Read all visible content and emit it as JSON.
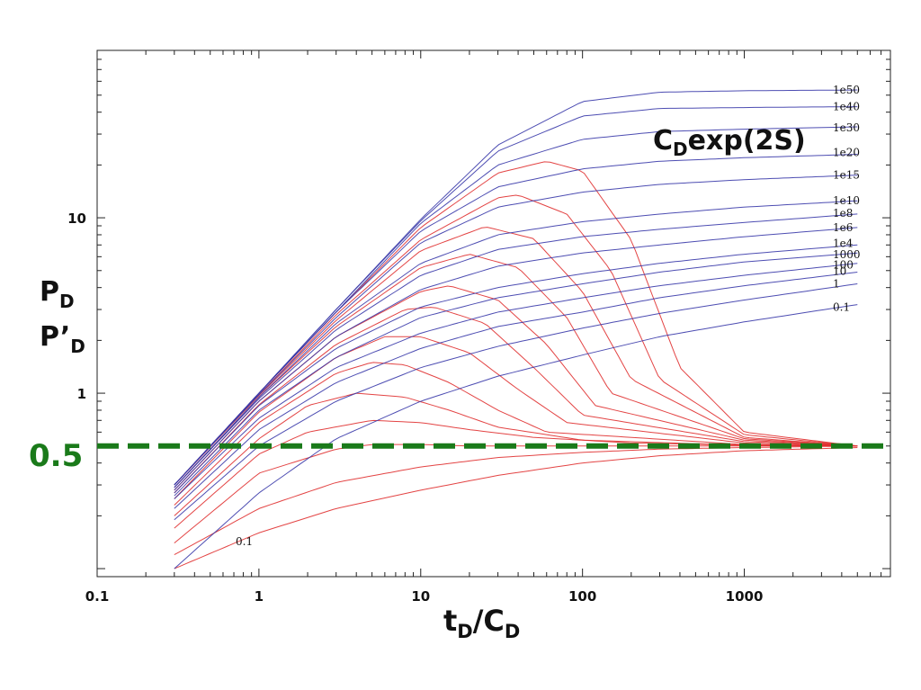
{
  "chart_data": {
    "type": "line",
    "xscale": "log",
    "yscale": "log",
    "xlim": [
      0.1,
      8000
    ],
    "ylim": [
      0.09,
      90
    ],
    "x_ticks": [
      0.1,
      1,
      10,
      100,
      1000
    ],
    "x_tick_labels": [
      "0.1",
      "1",
      "10",
      "100",
      "1000"
    ],
    "y_ticks": [
      1,
      10
    ],
    "y_tick_labels": [
      "1",
      "10"
    ],
    "xlabel": {
      "main": "t",
      "sub1": "D",
      "slash": "/C",
      "sub2": "D"
    },
    "ylabel": {
      "line1_main": "P",
      "line1_sub": "D",
      "line2_main": "P’",
      "line2_sub": "D"
    },
    "annotation": {
      "main": "C",
      "sub": "D",
      "rest": "exp(2S)"
    },
    "reference_line": {
      "value": 0.5,
      "label": "0.5",
      "color": "#1a7a1a",
      "style": "dashed"
    },
    "pressure_color": "#3a3aaa",
    "derivative_color": "#e03030",
    "grid": false,
    "cdexp2s_values": [
      "1e50",
      "1e40",
      "1e30",
      "1e20",
      "1e15",
      "1e10",
      "1e8",
      "1e6",
      "1e4",
      "1000",
      "100",
      "10",
      "1",
      "0.1"
    ],
    "derivative_curve_label": "0.1",
    "t_range": [
      0.3,
      5000
    ],
    "series": [
      {
        "type": "pressure",
        "cdexp2s": "1e50",
        "x": [
          0.3,
          1,
          3,
          10,
          30,
          100,
          300,
          1000,
          5000
        ],
        "values": [
          0.3,
          1.0,
          3.0,
          9.8,
          26,
          46,
          52,
          53,
          53.5
        ]
      },
      {
        "type": "pressure",
        "cdexp2s": "1e40",
        "x": [
          0.3,
          1,
          3,
          10,
          30,
          100,
          300,
          1000,
          5000
        ],
        "values": [
          0.3,
          1.0,
          3.0,
          9.6,
          24,
          38,
          42,
          42.5,
          43
        ]
      },
      {
        "type": "pressure",
        "cdexp2s": "1e30",
        "x": [
          0.3,
          1,
          3,
          10,
          30,
          100,
          300,
          1000,
          5000
        ],
        "values": [
          0.3,
          1.0,
          2.9,
          9.3,
          20,
          28,
          31,
          32,
          33
        ]
      },
      {
        "type": "pressure",
        "cdexp2s": "1e20",
        "x": [
          0.3,
          1,
          3,
          10,
          30,
          100,
          300,
          1000,
          5000
        ],
        "values": [
          0.3,
          1.0,
          2.9,
          8.4,
          15,
          19,
          21,
          22,
          23
        ]
      },
      {
        "type": "pressure",
        "cdexp2s": "1e15",
        "x": [
          0.3,
          1,
          3,
          10,
          30,
          100,
          300,
          1000,
          5000
        ],
        "values": [
          0.3,
          0.98,
          2.7,
          7.2,
          11.5,
          14,
          15.5,
          16.5,
          17.5
        ]
      },
      {
        "type": "pressure",
        "cdexp2s": "1e10",
        "x": [
          0.3,
          1,
          3,
          10,
          30,
          100,
          300,
          1000,
          5000
        ],
        "values": [
          0.29,
          0.95,
          2.5,
          5.5,
          8.0,
          9.5,
          10.5,
          11.5,
          12.5
        ]
      },
      {
        "type": "pressure",
        "cdexp2s": "1e8",
        "x": [
          0.3,
          1,
          3,
          10,
          30,
          100,
          300,
          1000,
          5000
        ],
        "values": [
          0.29,
          0.93,
          2.3,
          4.7,
          6.6,
          7.8,
          8.6,
          9.4,
          10.5
        ]
      },
      {
        "type": "pressure",
        "cdexp2s": "1e6",
        "x": [
          0.3,
          1,
          3,
          10,
          30,
          100,
          300,
          1000,
          5000
        ],
        "values": [
          0.28,
          0.9,
          2.1,
          3.9,
          5.3,
          6.3,
          7.0,
          7.8,
          8.8
        ]
      },
      {
        "type": "pressure",
        "cdexp2s": "1e4",
        "x": [
          0.3,
          1,
          3,
          10,
          30,
          100,
          300,
          1000,
          5000
        ],
        "values": [
          0.27,
          0.85,
          1.8,
          3.1,
          4.0,
          4.8,
          5.5,
          6.2,
          7.0
        ]
      },
      {
        "type": "pressure",
        "cdexp2s": "1000",
        "x": [
          0.3,
          1,
          3,
          10,
          30,
          100,
          300,
          1000,
          5000
        ],
        "values": [
          0.26,
          0.8,
          1.6,
          2.7,
          3.5,
          4.2,
          4.9,
          5.6,
          6.3
        ]
      },
      {
        "type": "pressure",
        "cdexp2s": "100",
        "x": [
          0.3,
          1,
          3,
          10,
          30,
          100,
          300,
          1000,
          5000
        ],
        "values": [
          0.25,
          0.72,
          1.4,
          2.2,
          2.9,
          3.5,
          4.1,
          4.7,
          5.5
        ]
      },
      {
        "type": "pressure",
        "cdexp2s": "10",
        "x": [
          0.3,
          1,
          3,
          10,
          30,
          100,
          300,
          1000,
          5000
        ],
        "values": [
          0.22,
          0.62,
          1.15,
          1.8,
          2.4,
          2.9,
          3.5,
          4.1,
          4.9
        ]
      },
      {
        "type": "pressure",
        "cdexp2s": "1",
        "x": [
          0.3,
          1,
          3,
          10,
          30,
          100,
          300,
          1000,
          5000
        ],
        "values": [
          0.19,
          0.5,
          0.9,
          1.4,
          1.85,
          2.35,
          2.85,
          3.4,
          4.2
        ]
      },
      {
        "type": "pressure",
        "cdexp2s": "0.1",
        "x": [
          0.3,
          1,
          3,
          10,
          30,
          100,
          300,
          1000,
          5000
        ],
        "values": [
          0.1,
          0.27,
          0.55,
          0.9,
          1.25,
          1.65,
          2.1,
          2.55,
          3.2
        ]
      },
      {
        "type": "derivative",
        "cdexp2s": "1e15",
        "x": [
          0.3,
          1,
          3,
          10,
          30,
          60,
          100,
          200,
          400,
          1000,
          5000
        ],
        "values": [
          0.3,
          1.0,
          2.9,
          8.8,
          18,
          21,
          18.5,
          7.5,
          1.4,
          0.6,
          0.5
        ]
      },
      {
        "type": "derivative",
        "cdexp2s": "1e10",
        "x": [
          0.3,
          1,
          3,
          10,
          30,
          40,
          80,
          150,
          300,
          1000,
          5000
        ],
        "values": [
          0.3,
          0.98,
          2.8,
          7.5,
          13,
          13.5,
          10.5,
          5.0,
          1.2,
          0.58,
          0.5
        ]
      },
      {
        "type": "derivative",
        "cdexp2s": "1e8",
        "x": [
          0.3,
          1,
          3,
          10,
          25,
          50,
          100,
          200,
          1000,
          5000
        ],
        "values": [
          0.3,
          0.97,
          2.6,
          6.5,
          8.9,
          7.6,
          3.8,
          1.2,
          0.56,
          0.5
        ]
      },
      {
        "type": "derivative",
        "cdexp2s": "1e6",
        "x": [
          0.3,
          1,
          3,
          10,
          20,
          40,
          80,
          150,
          1000,
          5000
        ],
        "values": [
          0.29,
          0.95,
          2.4,
          5.2,
          6.2,
          5.2,
          2.7,
          1.0,
          0.55,
          0.5
        ]
      },
      {
        "type": "derivative",
        "cdexp2s": "1e4",
        "x": [
          0.3,
          1,
          3,
          10,
          15,
          30,
          60,
          120,
          1000,
          5000
        ],
        "values": [
          0.28,
          0.9,
          2.1,
          3.8,
          4.1,
          3.4,
          1.9,
          0.85,
          0.54,
          0.5
        ]
      },
      {
        "type": "derivative",
        "cdexp2s": "1000",
        "x": [
          0.3,
          1,
          3,
          8,
          12,
          25,
          50,
          100,
          1000,
          5000
        ],
        "values": [
          0.27,
          0.86,
          1.9,
          3.0,
          3.1,
          2.5,
          1.4,
          0.75,
          0.53,
          0.5
        ]
      },
      {
        "type": "derivative",
        "cdexp2s": "100",
        "x": [
          0.3,
          1,
          3,
          6,
          10,
          20,
          40,
          80,
          1000,
          5000
        ],
        "values": [
          0.25,
          0.78,
          1.6,
          2.1,
          2.1,
          1.7,
          1.05,
          0.68,
          0.52,
          0.5
        ]
      },
      {
        "type": "derivative",
        "cdexp2s": "10",
        "x": [
          0.3,
          1,
          3,
          5,
          8,
          15,
          30,
          60,
          1000,
          5000
        ],
        "values": [
          0.23,
          0.68,
          1.3,
          1.5,
          1.45,
          1.15,
          0.8,
          0.6,
          0.51,
          0.5
        ]
      },
      {
        "type": "derivative",
        "cdexp2s": "1",
        "x": [
          0.3,
          1,
          2,
          4,
          8,
          15,
          30,
          100,
          1000,
          5000
        ],
        "values": [
          0.2,
          0.55,
          0.85,
          1.0,
          0.95,
          0.8,
          0.64,
          0.54,
          0.505,
          0.5
        ]
      },
      {
        "type": "derivative",
        "cdexp2s": "0.1a",
        "x": [
          0.3,
          1,
          2,
          5,
          10,
          20,
          50,
          200,
          1000,
          5000
        ],
        "values": [
          0.17,
          0.45,
          0.6,
          0.7,
          0.68,
          0.62,
          0.56,
          0.52,
          0.505,
          0.5
        ]
      },
      {
        "type": "derivative",
        "cdexp2s": "0.1b",
        "x": [
          0.3,
          1,
          3,
          5,
          10,
          20,
          50,
          200,
          1000,
          5000
        ],
        "values": [
          0.14,
          0.35,
          0.48,
          0.51,
          0.51,
          0.5,
          0.5,
          0.5,
          0.5,
          0.5
        ]
      },
      {
        "type": "derivative",
        "cdexp2s": "0.1c",
        "x": [
          0.3,
          1,
          3,
          10,
          30,
          100,
          300,
          1000,
          5000
        ],
        "values": [
          0.12,
          0.22,
          0.31,
          0.38,
          0.43,
          0.46,
          0.48,
          0.49,
          0.5
        ]
      },
      {
        "type": "derivative",
        "cdexp2s": "0.1d",
        "x": [
          0.3,
          1,
          3,
          10,
          30,
          100,
          300,
          1000,
          5000
        ],
        "values": [
          0.1,
          0.16,
          0.22,
          0.28,
          0.34,
          0.4,
          0.44,
          0.47,
          0.49
        ]
      }
    ]
  }
}
